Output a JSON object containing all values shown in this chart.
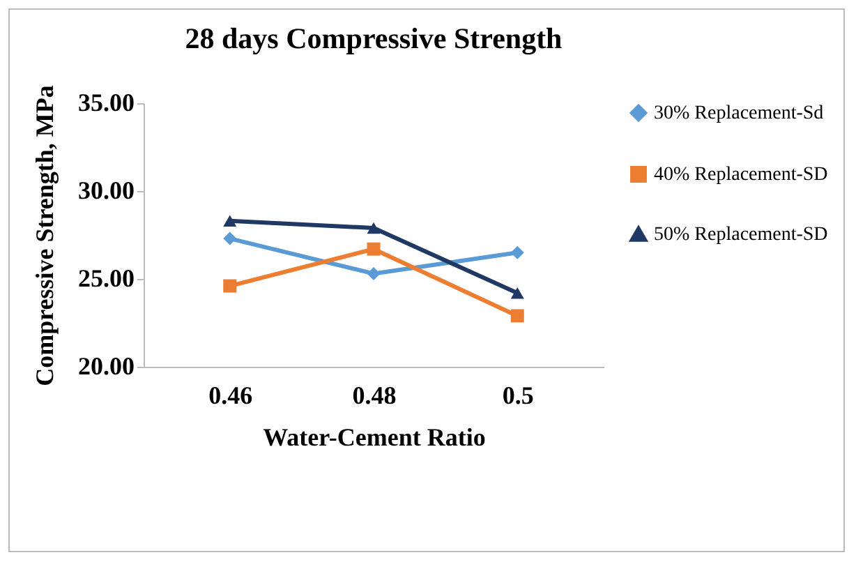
{
  "chart_data": {
    "type": "line",
    "title": "28 days Compressive Strength",
    "xlabel": "Water-Cement Ratio",
    "ylabel": "Compressive Strength, MPa",
    "categories": [
      "0.46",
      "0.48",
      "0.5"
    ],
    "series": [
      {
        "name": "30% Replacement-Sd",
        "color": "#5b9bd5",
        "marker": "diamond",
        "values": [
          27.3,
          25.3,
          26.5
        ]
      },
      {
        "name": "40% Replacement-SD",
        "color": "#ed7d31",
        "marker": "square",
        "values": [
          24.6,
          26.7,
          22.9
        ]
      },
      {
        "name": "50% Replacement-SD",
        "color": "#1f3864",
        "marker": "triangle",
        "values": [
          28.3,
          27.9,
          24.2
        ]
      }
    ],
    "ylim": [
      20,
      35
    ],
    "yticks": [
      {
        "value": 20,
        "label": "20.00"
      },
      {
        "value": 25,
        "label": "25.00"
      },
      {
        "value": 30,
        "label": "30.00"
      },
      {
        "value": 35,
        "label": "35.00"
      }
    ],
    "grid": false,
    "legend": "right",
    "line_style": "solid"
  }
}
